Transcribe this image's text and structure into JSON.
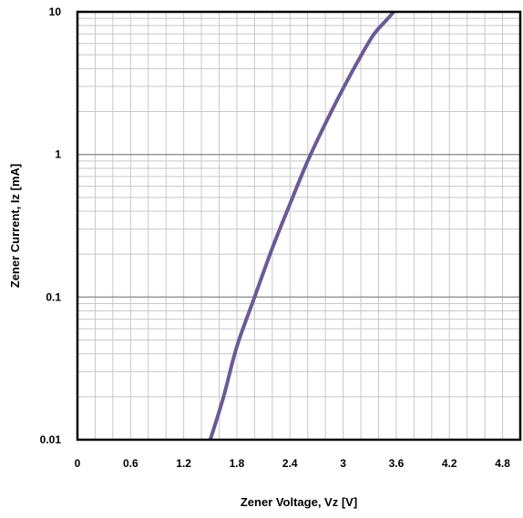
{
  "chart_data": {
    "type": "line",
    "xlabel": "Zener Voltage, Vz [V]",
    "ylabel": "Zener Current, Iz [mA]",
    "xlim": [
      0,
      5.0
    ],
    "ylim": [
      0.01,
      10
    ],
    "yscale": "log",
    "grid": true,
    "x_ticks": [
      "0",
      "0.6",
      "1.2",
      "1.8",
      "2.4",
      "3",
      "3.6",
      "4.2",
      "4.8"
    ],
    "y_ticks": [
      "0.01",
      "0.1",
      "1",
      "10"
    ],
    "series": [
      {
        "color": "#6a5a96",
        "x": [
          1.5,
          1.65,
          1.8,
          2.0,
          2.2,
          2.4,
          2.6,
          2.8,
          3.0,
          3.2,
          3.35,
          3.5,
          3.57
        ],
        "y": [
          0.01,
          0.02,
          0.045,
          0.1,
          0.22,
          0.45,
          0.9,
          1.65,
          2.9,
          4.9,
          7.0,
          8.9,
          10.0
        ]
      }
    ]
  }
}
